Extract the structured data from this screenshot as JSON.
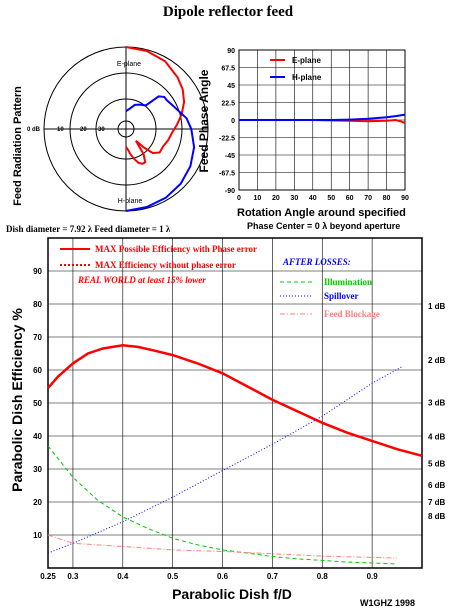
{
  "page": {
    "title": "Dipole reflector feed",
    "credit": "W1GHZ 1998",
    "dish_caption": "Dish diameter = 7.92 λ  Feed diameter = 1 λ"
  },
  "colors": {
    "e_plane": "#ff0000",
    "h_plane": "#0000ff",
    "illumination": "#00c800",
    "spillover": "#0000ff",
    "feed_blockage": "#ff8080",
    "annotation_red": "#ff0000",
    "annotation_blue": "#0000ff"
  },
  "chart_data": [
    {
      "type": "polar",
      "ylabel": "Feed Radiation Pattern",
      "labels": {
        "top": "E-plane",
        "bottom": "H-plane"
      },
      "ring_labels": [
        "0 dB",
        "-10",
        "-20",
        "-30"
      ],
      "series": [
        {
          "name": "E-plane",
          "angle_deg": [
            0,
            15,
            30,
            45,
            55,
            65,
            75,
            85,
            95,
            105,
            115,
            125,
            132,
            136,
            140,
            145,
            150,
            155,
            160,
            165,
            170,
            175,
            180
          ],
          "db": [
            0,
            -0.5,
            -1.5,
            -3.5,
            -5,
            -7,
            -9.5,
            -12,
            -14,
            -15,
            -16,
            -16,
            -18,
            -22,
            -26,
            -20,
            -17,
            -17,
            -18,
            -20,
            -22,
            -24,
            -25
          ]
        },
        {
          "name": "H-plane",
          "angle_deg": [
            0,
            15,
            30,
            45,
            60,
            75,
            90,
            100,
            110,
            120,
            125,
            130,
            135,
            140,
            150,
            160,
            170,
            180
          ],
          "db": [
            0,
            -0.5,
            -1,
            -1.8,
            -3,
            -4.5,
            -6.5,
            -8,
            -10.5,
            -12,
            -12.5,
            -12.5,
            -14,
            -20,
            -21,
            -22,
            -24,
            -25
          ]
        }
      ]
    },
    {
      "type": "line",
      "ylabel": "Feed Phase Angle",
      "xlabel": "Rotation Angle around specified",
      "subtitle": "Phase Center = 0 λ beyond aperture",
      "xlim": [
        0,
        90
      ],
      "ylim": [
        -90,
        90
      ],
      "x_ticks": [
        0,
        10,
        20,
        30,
        40,
        50,
        60,
        70,
        80,
        90
      ],
      "y_ticks": [
        90,
        67.5,
        45,
        22.5,
        0,
        -22.5,
        -45,
        -67.5,
        -90
      ],
      "series": [
        {
          "name": "E-plane",
          "x": [
            0,
            20,
            40,
            50,
            60,
            70,
            80,
            85,
            88,
            90
          ],
          "y": [
            0,
            0,
            0,
            -0.5,
            -1,
            -1.5,
            -1,
            0,
            -2,
            -4
          ]
        },
        {
          "name": "H-plane",
          "x": [
            0,
            20,
            40,
            50,
            60,
            70,
            80,
            85,
            90
          ],
          "y": [
            0,
            0,
            0,
            0,
            0.5,
            1.5,
            3.5,
            5,
            7
          ]
        }
      ]
    },
    {
      "type": "line",
      "ylabel": "Parabolic Dish Efficiency %",
      "xlabel": "Parabolic Dish f/D",
      "xlim": [
        0.25,
        1.0
      ],
      "ylim": [
        0,
        100
      ],
      "x_ticks": [
        "0.25",
        "0.3",
        "0.4",
        "0.5",
        "0.6",
        "0.7",
        "0.8",
        "0.9"
      ],
      "y_ticks": [
        10,
        20,
        30,
        40,
        50,
        60,
        70,
        80,
        90
      ],
      "right_ticks": [
        {
          "label": "1 dB",
          "value": 79.4
        },
        {
          "label": "2 dB",
          "value": 63.1
        },
        {
          "label": "3 dB",
          "value": 50.1
        },
        {
          "label": "4 dB",
          "value": 39.8
        },
        {
          "label": "5 dB",
          "value": 31.6
        },
        {
          "label": "6 dB",
          "value": 25.1
        },
        {
          "label": "7 dB",
          "value": 20.0
        },
        {
          "label": "8 dB",
          "value": 15.8
        }
      ],
      "legend": [
        {
          "text": "MAX Possible Efficiency with Phase error",
          "style": "solid"
        },
        {
          "text": "MAX Efficiency without phase error",
          "style": "dotted"
        }
      ],
      "note": "REAL WORLD at least 15% lower",
      "losses_title": "AFTER LOSSES:",
      "losses_legend": [
        "Illumination",
        "Spillover",
        "Feed Blockage"
      ],
      "series": [
        {
          "name": "MAX Possible Efficiency with Phase error",
          "x": [
            0.25,
            0.27,
            0.3,
            0.33,
            0.36,
            0.4,
            0.43,
            0.46,
            0.5,
            0.55,
            0.6,
            0.65,
            0.7,
            0.75,
            0.8,
            0.85,
            0.9,
            0.95,
            1.0
          ],
          "y": [
            54.5,
            58,
            62,
            65,
            66.5,
            67.5,
            67,
            66,
            64.5,
            62,
            59,
            55,
            51,
            47.5,
            44,
            41,
            38.5,
            36,
            34
          ]
        },
        {
          "name": "Illumination",
          "x": [
            0.25,
            0.3,
            0.35,
            0.4,
            0.45,
            0.5,
            0.55,
            0.6,
            0.65,
            0.7,
            0.75,
            0.8,
            0.85,
            0.9,
            0.95
          ],
          "y": [
            37,
            27.5,
            20.5,
            15.5,
            12,
            9,
            7,
            5.5,
            4.5,
            3.5,
            2.8,
            2.3,
            1.8,
            1.5,
            1.2
          ]
        },
        {
          "name": "Spillover",
          "x": [
            0.25,
            0.3,
            0.4,
            0.5,
            0.6,
            0.7,
            0.8,
            0.9,
            0.96
          ],
          "y": [
            4.5,
            7.5,
            14,
            21.5,
            29.5,
            37.5,
            46,
            56,
            61
          ]
        },
        {
          "name": "Feed Blockage",
          "x": [
            0.25,
            0.3,
            0.4,
            0.5,
            0.6,
            0.7,
            0.8,
            0.9,
            0.95
          ],
          "y": [
            10,
            7.5,
            6.5,
            5.5,
            5,
            4.3,
            3.6,
            3.2,
            3
          ]
        }
      ]
    }
  ]
}
